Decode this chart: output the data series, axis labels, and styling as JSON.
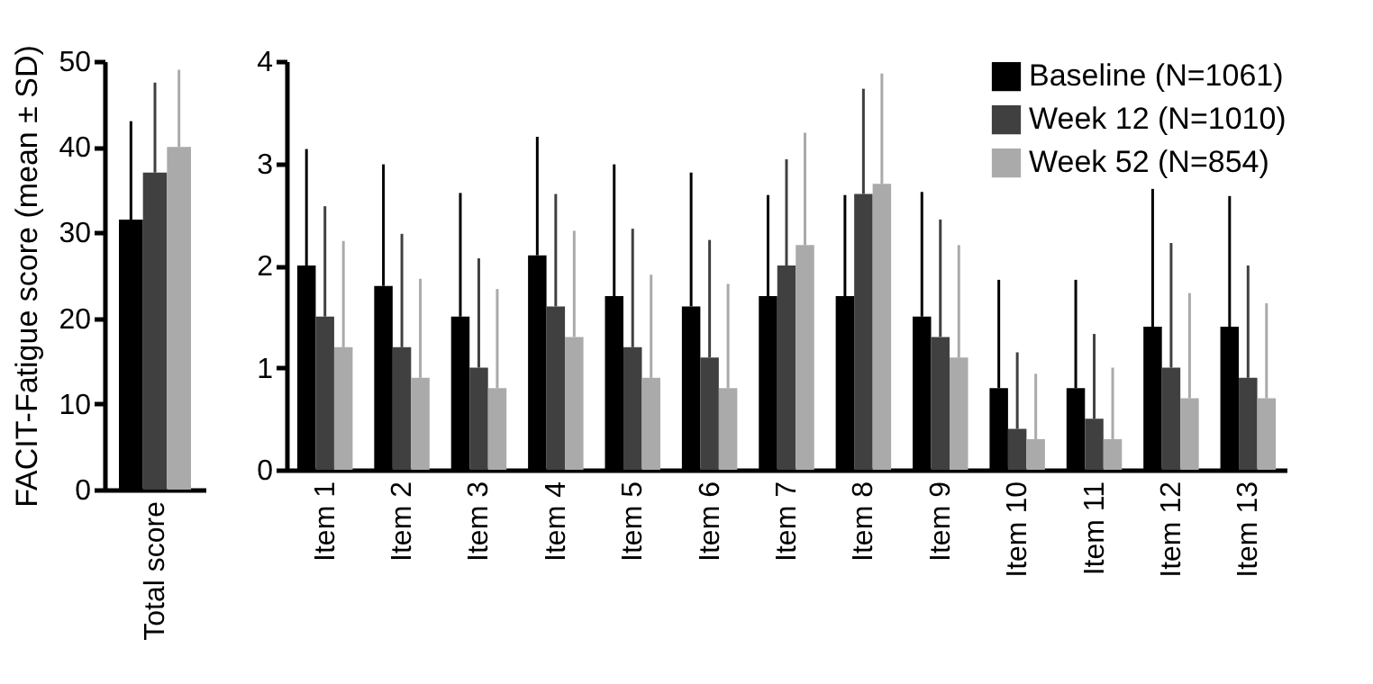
{
  "chart_data": [
    {
      "type": "bar",
      "ylabel": "FACIT-Fatigue score (mean ± SD)",
      "categories": [
        "Total score"
      ],
      "ylim": [
        0,
        50
      ],
      "yticks": [
        0,
        10,
        20,
        30,
        40,
        50
      ],
      "series": [
        {
          "color": "#000000",
          "values": [
            31.5
          ],
          "errors": [
            [
              31.5,
              43.0
            ]
          ]
        },
        {
          "color": "#404040",
          "values": [
            37.0
          ],
          "errors": [
            [
              37.0,
              47.5
            ]
          ]
        },
        {
          "color": "#aaaaaa",
          "values": [
            40.0
          ],
          "errors": [
            [
              40.0,
              49.0
            ]
          ]
        }
      ]
    },
    {
      "type": "bar",
      "legend": "top right",
      "categories": [
        "Item 1",
        "Item 2",
        "Item 3",
        "Item 4",
        "Item 5",
        "Item 6",
        "Item 7",
        "Item 8",
        "Item 9",
        "Item 10",
        "Item 11",
        "Item 12",
        "Item 13"
      ],
      "ylim": [
        0,
        4
      ],
      "yticks": [
        0,
        1,
        2,
        3,
        4
      ],
      "series": [
        {
          "name": "Baseline (N=1061)",
          "color": "#000000",
          "values": [
            2.0,
            1.8,
            1.5,
            2.1,
            1.7,
            1.6,
            1.7,
            1.7,
            1.5,
            0.8,
            0.8,
            1.4,
            1.4
          ],
          "errors": [
            [
              2.0,
              3.14
            ],
            [
              1.8,
              2.99
            ],
            [
              1.5,
              2.71
            ],
            [
              2.1,
              3.26
            ],
            [
              1.7,
              2.99
            ],
            [
              1.6,
              2.91
            ],
            [
              1.7,
              2.69
            ],
            [
              1.7,
              2.69
            ],
            [
              1.5,
              2.72
            ],
            [
              0.8,
              1.86
            ],
            [
              0.8,
              1.86
            ],
            [
              1.4,
              2.75
            ],
            [
              1.4,
              2.68
            ]
          ]
        },
        {
          "name": "Week 12 (N=1010)",
          "color": "#404040",
          "values": [
            1.5,
            1.2,
            1.0,
            1.6,
            1.2,
            1.1,
            2.0,
            2.7,
            1.3,
            0.4,
            0.5,
            1.0,
            0.9
          ],
          "errors": [
            [
              1.5,
              2.58
            ],
            [
              1.2,
              2.31
            ],
            [
              1.0,
              2.07
            ],
            [
              1.6,
              2.7
            ],
            [
              1.2,
              2.36
            ],
            [
              1.1,
              2.25
            ],
            [
              2.0,
              3.04
            ],
            [
              2.7,
              3.73
            ],
            [
              1.3,
              2.45
            ],
            [
              0.4,
              1.15
            ],
            [
              0.5,
              1.33
            ],
            [
              1.0,
              2.22
            ],
            [
              0.9,
              2.0
            ]
          ]
        },
        {
          "name": "Week 52 (N=854)",
          "color": "#aaaaaa",
          "values": [
            1.2,
            0.9,
            0.8,
            1.3,
            0.9,
            0.8,
            2.2,
            2.8,
            1.1,
            0.3,
            0.3,
            0.7,
            0.7
          ],
          "errors": [
            [
              1.2,
              2.24
            ],
            [
              0.9,
              1.87
            ],
            [
              0.8,
              1.77
            ],
            [
              1.3,
              2.34
            ],
            [
              0.9,
              1.91
            ],
            [
              0.8,
              1.82
            ],
            [
              2.2,
              3.3
            ],
            [
              2.8,
              3.88
            ],
            [
              1.1,
              2.2
            ],
            [
              0.3,
              0.94
            ],
            [
              0.3,
              1.0
            ],
            [
              0.7,
              1.73
            ],
            [
              0.7,
              1.63
            ]
          ]
        }
      ]
    }
  ]
}
